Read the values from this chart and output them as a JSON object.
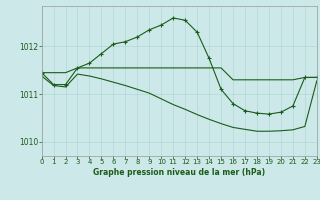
{
  "title": "Graphe pression niveau de la mer (hPa)",
  "background_color": "#cce8e8",
  "line_color": "#1a5c1a",
  "xlim": [
    0,
    23
  ],
  "ylim": [
    1009.7,
    1012.85
  ],
  "yticks": [
    1010,
    1011,
    1012
  ],
  "xticks": [
    0,
    1,
    2,
    3,
    4,
    5,
    6,
    7,
    8,
    9,
    10,
    11,
    12,
    13,
    14,
    15,
    16,
    17,
    18,
    19,
    20,
    21,
    22,
    23
  ],
  "series1_x": [
    0,
    1,
    2,
    3,
    4,
    5,
    6,
    7,
    8,
    9,
    10,
    11,
    12,
    13,
    14,
    15,
    16,
    17,
    18,
    19,
    20,
    21,
    22,
    23
  ],
  "series1_y": [
    1011.45,
    1011.2,
    1011.2,
    1011.55,
    1011.65,
    1011.85,
    1012.05,
    1012.1,
    1012.2,
    1012.35,
    1012.45,
    1012.6,
    1012.55,
    1012.3,
    1011.75,
    1011.1,
    1010.8,
    1010.65,
    1010.6,
    1010.58,
    1010.62,
    1010.75,
    1011.35,
    1011.35
  ],
  "series2_x": [
    0,
    1,
    2,
    3,
    4,
    5,
    6,
    7,
    8,
    9,
    10,
    11,
    12,
    13,
    14,
    15,
    16,
    17,
    18,
    19,
    20,
    21,
    22,
    23
  ],
  "series2_y": [
    1011.45,
    1011.45,
    1011.45,
    1011.55,
    1011.55,
    1011.55,
    1011.55,
    1011.55,
    1011.55,
    1011.55,
    1011.55,
    1011.55,
    1011.55,
    1011.55,
    1011.55,
    1011.55,
    1011.3,
    1011.3,
    1011.3,
    1011.3,
    1011.3,
    1011.3,
    1011.35,
    1011.35
  ],
  "series3_x": [
    0,
    1,
    2,
    3,
    4,
    5,
    6,
    7,
    8,
    9,
    10,
    11,
    12,
    13,
    14,
    15,
    16,
    17,
    18,
    19,
    20,
    21,
    22,
    23
  ],
  "series3_y": [
    1011.38,
    1011.18,
    1011.15,
    1011.42,
    1011.38,
    1011.32,
    1011.25,
    1011.18,
    1011.1,
    1011.02,
    1010.9,
    1010.78,
    1010.68,
    1010.57,
    1010.47,
    1010.38,
    1010.3,
    1010.26,
    1010.22,
    1010.22,
    1010.23,
    1010.25,
    1010.32,
    1011.28
  ]
}
